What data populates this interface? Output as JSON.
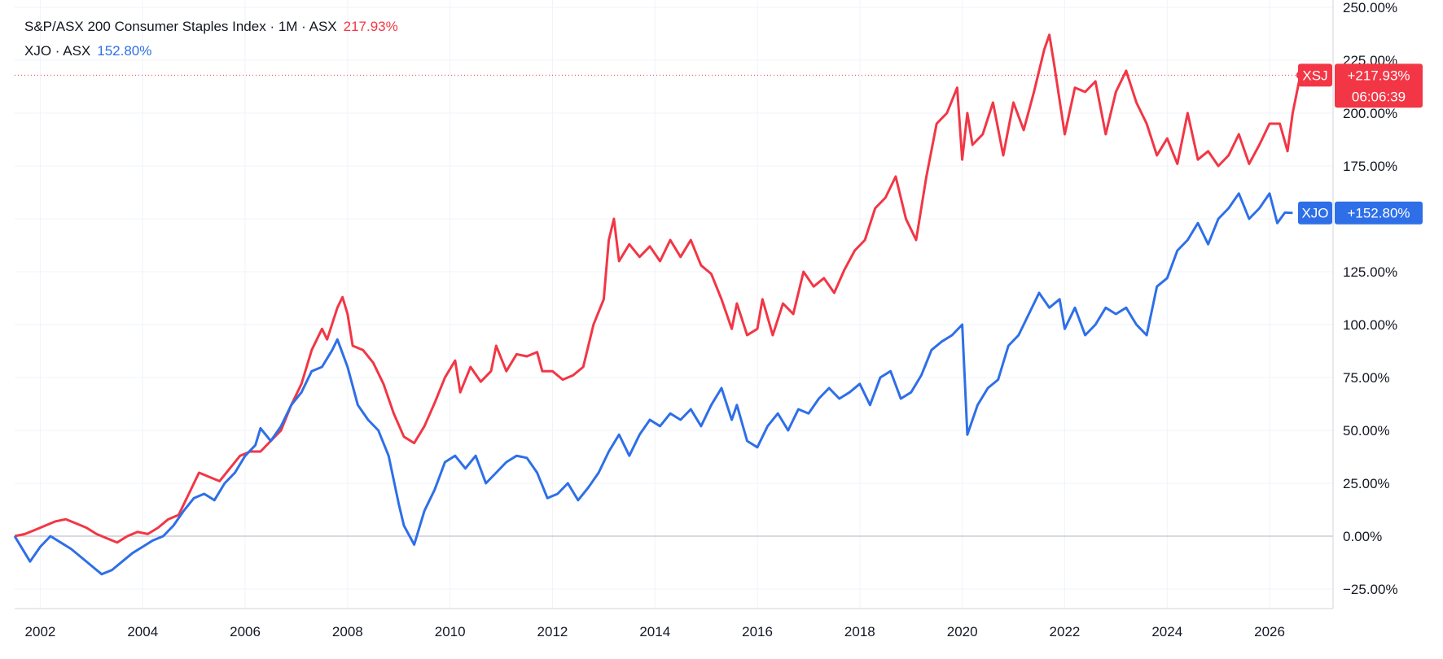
{
  "legend": {
    "row1": {
      "name": "S&P/ASX 200 Consumer Staples Index · 1M · ASX",
      "value": "217.93%"
    },
    "row2": {
      "name": "XJO · ASX",
      "value": "152.80%"
    }
  },
  "colors": {
    "xsj": "#f23645",
    "xjo": "#2e6fe8",
    "grid": "#f0f3fa",
    "zero": "#b2b5be",
    "axis_text": "#131722"
  },
  "price_labels": {
    "xsj": {
      "ticker": "XSJ",
      "value": "+217.93%",
      "countdown": "06:06:39"
    },
    "xjo": {
      "ticker": "XJO",
      "value": "+152.80%"
    }
  },
  "chart_data": {
    "type": "line",
    "title": "S&P/ASX 200 Consumer Staples Index · 1M · ASX",
    "xlabel": "",
    "ylabel": "",
    "x_ticks": [
      "2002",
      "2004",
      "2006",
      "2008",
      "2010",
      "2012",
      "2014",
      "2016",
      "2018",
      "2020",
      "2022",
      "2024",
      "2026"
    ],
    "y_ticks": [
      "250.00%",
      "225.00%",
      "200.00%",
      "175.00%",
      "150.00%",
      "125.00%",
      "100.00%",
      "75.00%",
      "50.00%",
      "25.00%",
      "0.00%",
      "−25.00%"
    ],
    "ylim": [
      -35,
      250
    ],
    "xlim": [
      2001.5,
      2027.4
    ],
    "grid": true,
    "series": [
      {
        "name": "XSJ",
        "points": [
          [
            2001.5,
            0
          ],
          [
            2001.7,
            1
          ],
          [
            2001.9,
            3
          ],
          [
            2002.1,
            5
          ],
          [
            2002.3,
            7
          ],
          [
            2002.5,
            8
          ],
          [
            2002.7,
            6
          ],
          [
            2002.9,
            4
          ],
          [
            2003.1,
            1
          ],
          [
            2003.3,
            -1
          ],
          [
            2003.5,
            -3
          ],
          [
            2003.7,
            0
          ],
          [
            2003.9,
            2
          ],
          [
            2004.1,
            1
          ],
          [
            2004.3,
            4
          ],
          [
            2004.5,
            8
          ],
          [
            2004.7,
            10
          ],
          [
            2004.9,
            20
          ],
          [
            2005.1,
            30
          ],
          [
            2005.3,
            28
          ],
          [
            2005.5,
            26
          ],
          [
            2005.7,
            32
          ],
          [
            2005.9,
            38
          ],
          [
            2006.1,
            40
          ],
          [
            2006.3,
            40
          ],
          [
            2006.5,
            45
          ],
          [
            2006.7,
            50
          ],
          [
            2006.9,
            62
          ],
          [
            2007.1,
            72
          ],
          [
            2007.3,
            88
          ],
          [
            2007.5,
            98
          ],
          [
            2007.6,
            93
          ],
          [
            2007.8,
            108
          ],
          [
            2007.9,
            113
          ],
          [
            2008.0,
            105
          ],
          [
            2008.1,
            90
          ],
          [
            2008.3,
            88
          ],
          [
            2008.5,
            82
          ],
          [
            2008.7,
            72
          ],
          [
            2008.9,
            58
          ],
          [
            2009.1,
            47
          ],
          [
            2009.3,
            44
          ],
          [
            2009.5,
            52
          ],
          [
            2009.7,
            63
          ],
          [
            2009.9,
            75
          ],
          [
            2010.1,
            83
          ],
          [
            2010.2,
            68
          ],
          [
            2010.4,
            80
          ],
          [
            2010.6,
            73
          ],
          [
            2010.8,
            78
          ],
          [
            2010.9,
            90
          ],
          [
            2011.1,
            78
          ],
          [
            2011.3,
            86
          ],
          [
            2011.5,
            85
          ],
          [
            2011.7,
            87
          ],
          [
            2011.8,
            78
          ],
          [
            2012.0,
            78
          ],
          [
            2012.2,
            74
          ],
          [
            2012.4,
            76
          ],
          [
            2012.6,
            80
          ],
          [
            2012.8,
            100
          ],
          [
            2013.0,
            112
          ],
          [
            2013.1,
            140
          ],
          [
            2013.2,
            150
          ],
          [
            2013.3,
            130
          ],
          [
            2013.5,
            138
          ],
          [
            2013.7,
            132
          ],
          [
            2013.9,
            137
          ],
          [
            2014.1,
            130
          ],
          [
            2014.3,
            140
          ],
          [
            2014.5,
            132
          ],
          [
            2014.7,
            140
          ],
          [
            2014.9,
            128
          ],
          [
            2015.1,
            124
          ],
          [
            2015.3,
            112
          ],
          [
            2015.5,
            98
          ],
          [
            2015.6,
            110
          ],
          [
            2015.8,
            95
          ],
          [
            2016.0,
            98
          ],
          [
            2016.1,
            112
          ],
          [
            2016.3,
            95
          ],
          [
            2016.5,
            110
          ],
          [
            2016.7,
            105
          ],
          [
            2016.9,
            125
          ],
          [
            2017.1,
            118
          ],
          [
            2017.3,
            122
          ],
          [
            2017.5,
            115
          ],
          [
            2017.7,
            126
          ],
          [
            2017.9,
            135
          ],
          [
            2018.1,
            140
          ],
          [
            2018.3,
            155
          ],
          [
            2018.5,
            160
          ],
          [
            2018.7,
            170
          ],
          [
            2018.9,
            150
          ],
          [
            2019.1,
            140
          ],
          [
            2019.3,
            170
          ],
          [
            2019.5,
            195
          ],
          [
            2019.7,
            200
          ],
          [
            2019.9,
            212
          ],
          [
            2020.0,
            178
          ],
          [
            2020.1,
            200
          ],
          [
            2020.2,
            185
          ],
          [
            2020.4,
            190
          ],
          [
            2020.6,
            205
          ],
          [
            2020.8,
            180
          ],
          [
            2021.0,
            205
          ],
          [
            2021.2,
            192
          ],
          [
            2021.4,
            210
          ],
          [
            2021.6,
            230
          ],
          [
            2021.7,
            237
          ],
          [
            2021.8,
            222
          ],
          [
            2022.0,
            190
          ],
          [
            2022.2,
            212
          ],
          [
            2022.4,
            210
          ],
          [
            2022.6,
            215
          ],
          [
            2022.8,
            190
          ],
          [
            2023.0,
            210
          ],
          [
            2023.2,
            220
          ],
          [
            2023.4,
            205
          ],
          [
            2023.6,
            195
          ],
          [
            2023.8,
            180
          ],
          [
            2024.0,
            188
          ],
          [
            2024.2,
            176
          ],
          [
            2024.4,
            200
          ],
          [
            2024.6,
            178
          ],
          [
            2024.8,
            182
          ],
          [
            2025.0,
            175
          ],
          [
            2025.2,
            180
          ],
          [
            2025.4,
            190
          ],
          [
            2025.6,
            176
          ],
          [
            2025.8,
            185
          ],
          [
            2026.0,
            195
          ],
          [
            2026.2,
            195
          ],
          [
            2026.35,
            182
          ],
          [
            2026.45,
            200
          ],
          [
            2026.6,
            217.93
          ]
        ]
      },
      {
        "name": "XJO",
        "points": [
          [
            2001.5,
            0
          ],
          [
            2001.7,
            -8
          ],
          [
            2001.8,
            -12
          ],
          [
            2002.0,
            -5
          ],
          [
            2002.2,
            0
          ],
          [
            2002.4,
            -3
          ],
          [
            2002.6,
            -6
          ],
          [
            2002.8,
            -10
          ],
          [
            2003.0,
            -14
          ],
          [
            2003.2,
            -18
          ],
          [
            2003.4,
            -16
          ],
          [
            2003.6,
            -12
          ],
          [
            2003.8,
            -8
          ],
          [
            2004.0,
            -5
          ],
          [
            2004.2,
            -2
          ],
          [
            2004.4,
            0
          ],
          [
            2004.6,
            5
          ],
          [
            2004.8,
            12
          ],
          [
            2005.0,
            18
          ],
          [
            2005.2,
            20
          ],
          [
            2005.4,
            17
          ],
          [
            2005.6,
            25
          ],
          [
            2005.8,
            30
          ],
          [
            2006.0,
            38
          ],
          [
            2006.2,
            43
          ],
          [
            2006.3,
            51
          ],
          [
            2006.5,
            45
          ],
          [
            2006.7,
            52
          ],
          [
            2006.9,
            62
          ],
          [
            2007.1,
            68
          ],
          [
            2007.3,
            78
          ],
          [
            2007.5,
            80
          ],
          [
            2007.7,
            88
          ],
          [
            2007.8,
            93
          ],
          [
            2008.0,
            80
          ],
          [
            2008.2,
            62
          ],
          [
            2008.4,
            55
          ],
          [
            2008.6,
            50
          ],
          [
            2008.8,
            38
          ],
          [
            2009.0,
            15
          ],
          [
            2009.1,
            5
          ],
          [
            2009.3,
            -4
          ],
          [
            2009.5,
            12
          ],
          [
            2009.7,
            22
          ],
          [
            2009.9,
            35
          ],
          [
            2010.1,
            38
          ],
          [
            2010.3,
            32
          ],
          [
            2010.5,
            38
          ],
          [
            2010.7,
            25
          ],
          [
            2010.9,
            30
          ],
          [
            2011.1,
            35
          ],
          [
            2011.3,
            38
          ],
          [
            2011.5,
            37
          ],
          [
            2011.7,
            30
          ],
          [
            2011.9,
            18
          ],
          [
            2012.1,
            20
          ],
          [
            2012.3,
            25
          ],
          [
            2012.5,
            17
          ],
          [
            2012.7,
            23
          ],
          [
            2012.9,
            30
          ],
          [
            2013.1,
            40
          ],
          [
            2013.3,
            48
          ],
          [
            2013.5,
            38
          ],
          [
            2013.7,
            48
          ],
          [
            2013.9,
            55
          ],
          [
            2014.1,
            52
          ],
          [
            2014.3,
            58
          ],
          [
            2014.5,
            55
          ],
          [
            2014.7,
            60
          ],
          [
            2014.9,
            52
          ],
          [
            2015.1,
            62
          ],
          [
            2015.3,
            70
          ],
          [
            2015.5,
            55
          ],
          [
            2015.6,
            62
          ],
          [
            2015.8,
            45
          ],
          [
            2016.0,
            42
          ],
          [
            2016.2,
            52
          ],
          [
            2016.4,
            58
          ],
          [
            2016.6,
            50
          ],
          [
            2016.8,
            60
          ],
          [
            2017.0,
            58
          ],
          [
            2017.2,
            65
          ],
          [
            2017.4,
            70
          ],
          [
            2017.6,
            65
          ],
          [
            2017.8,
            68
          ],
          [
            2018.0,
            72
          ],
          [
            2018.2,
            62
          ],
          [
            2018.4,
            75
          ],
          [
            2018.6,
            78
          ],
          [
            2018.8,
            65
          ],
          [
            2019.0,
            68
          ],
          [
            2019.2,
            76
          ],
          [
            2019.4,
            88
          ],
          [
            2019.6,
            92
          ],
          [
            2019.8,
            95
          ],
          [
            2020.0,
            100
          ],
          [
            2020.1,
            48
          ],
          [
            2020.3,
            62
          ],
          [
            2020.5,
            70
          ],
          [
            2020.7,
            74
          ],
          [
            2020.9,
            90
          ],
          [
            2021.1,
            95
          ],
          [
            2021.3,
            105
          ],
          [
            2021.5,
            115
          ],
          [
            2021.7,
            108
          ],
          [
            2021.9,
            112
          ],
          [
            2022.0,
            98
          ],
          [
            2022.2,
            108
          ],
          [
            2022.4,
            95
          ],
          [
            2022.6,
            100
          ],
          [
            2022.8,
            108
          ],
          [
            2023.0,
            105
          ],
          [
            2023.2,
            108
          ],
          [
            2023.4,
            100
          ],
          [
            2023.6,
            95
          ],
          [
            2023.8,
            118
          ],
          [
            2024.0,
            122
          ],
          [
            2024.2,
            135
          ],
          [
            2024.4,
            140
          ],
          [
            2024.6,
            148
          ],
          [
            2024.8,
            138
          ],
          [
            2025.0,
            150
          ],
          [
            2025.2,
            155
          ],
          [
            2025.4,
            162
          ],
          [
            2025.6,
            150
          ],
          [
            2025.8,
            155
          ],
          [
            2026.0,
            162
          ],
          [
            2026.15,
            148
          ],
          [
            2026.3,
            153
          ],
          [
            2026.45,
            152.8
          ]
        ]
      }
    ]
  }
}
